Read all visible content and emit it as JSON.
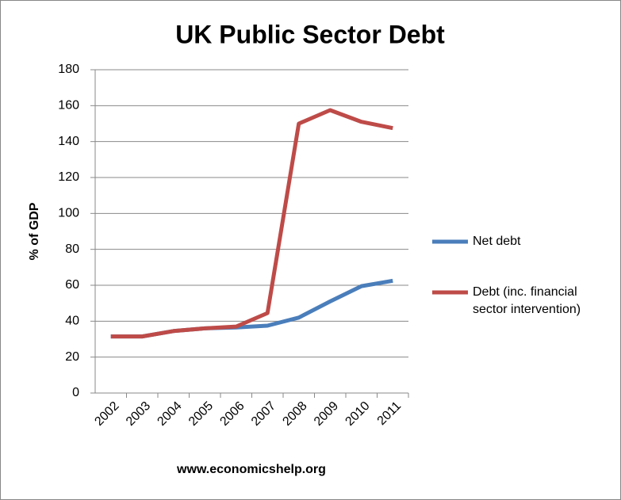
{
  "chart_data": {
    "type": "line",
    "title": "UK Public Sector Debt",
    "y_label": "% of GDP",
    "source": "www.economicshelp.org",
    "categories": [
      "2002",
      "2003",
      "2004",
      "2005",
      "2006",
      "2007",
      "2008",
      "2009",
      "2010",
      "2011"
    ],
    "series": [
      {
        "name": "Net debt",
        "color": "#4a7ebb",
        "values": [
          31.5,
          31.5,
          34.5,
          36,
          36.5,
          37.5,
          42,
          51,
          59.5,
          62.5
        ]
      },
      {
        "name": "Debt (inc. financial sector intervention)",
        "color": "#be4b48",
        "values": [
          31.5,
          31.5,
          34.5,
          36,
          37,
          44.5,
          150,
          157.5,
          151,
          147.5
        ]
      }
    ],
    "ylim": [
      0,
      180
    ],
    "yticks": [
      0,
      20,
      40,
      60,
      80,
      100,
      120,
      140,
      160,
      180
    ],
    "grid": true,
    "legend": "right"
  }
}
